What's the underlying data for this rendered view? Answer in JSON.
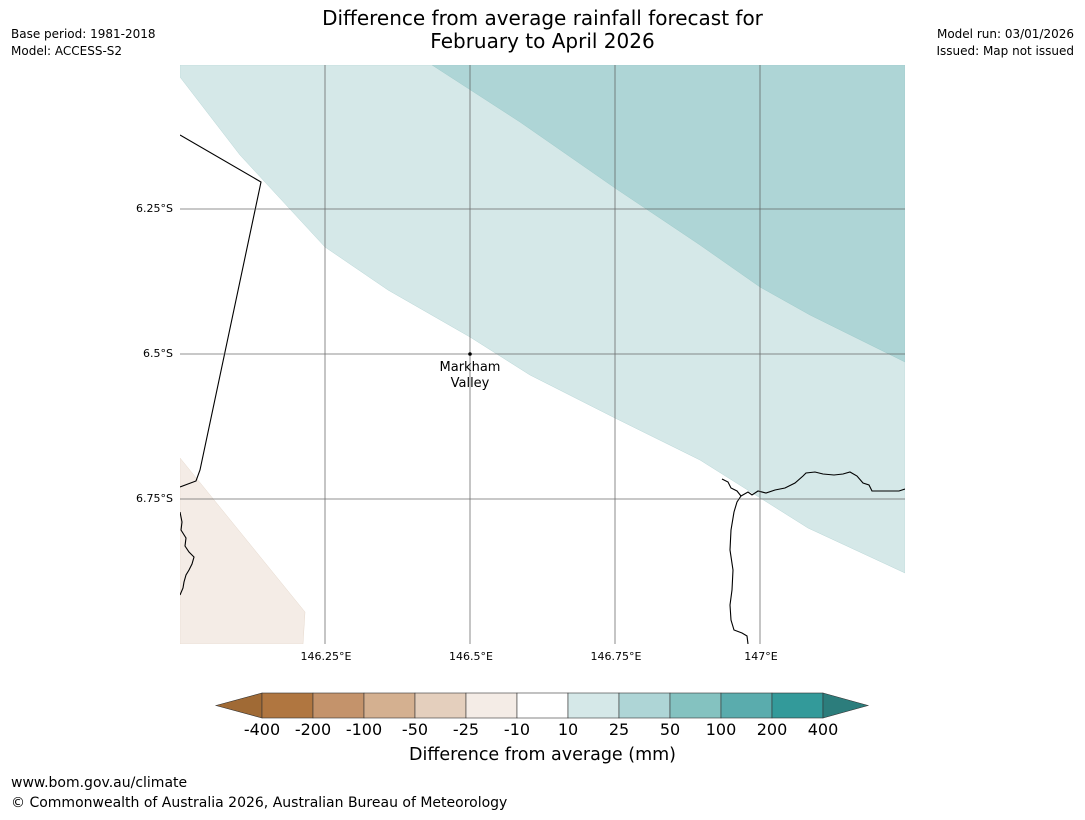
{
  "header": {
    "base_period": "Base period: 1981-2018",
    "model": "Model: ACCESS-S2",
    "model_run": "Model run: 03/01/2026",
    "issued": "Issued: Map not issued",
    "title_line1": "Difference from average rainfall forecast for",
    "title_line2": "February to April 2026"
  },
  "map": {
    "lat_labels": [
      "6.25°S",
      "6.5°S",
      "6.75°S"
    ],
    "lon_labels": [
      "146.25°E",
      "146.5°E",
      "146.75°E",
      "147°E"
    ],
    "place": {
      "name_line1": "Markham",
      "name_line2": "Valley",
      "lat": -6.5,
      "lon": 146.5
    }
  },
  "colorbar": {
    "ticks": [
      "-400",
      "-200",
      "-100",
      "-50",
      "-25",
      "-10",
      "10",
      "25",
      "50",
      "100",
      "200",
      "400"
    ],
    "colors": {
      "below_min": "#a06a35",
      "bins": [
        "#b07640",
        "#c4936b",
        "#d4b090",
        "#e4cfbd",
        "#f4ece6",
        "#ffffff",
        "#d5e8e8",
        "#aed5d6",
        "#84c2c0",
        "#5aacad",
        "#339a9a"
      ],
      "above_max": "#2c7d7c"
    },
    "label": "Difference from average (mm)"
  },
  "footer": {
    "url": "www.bom.gov.au/climate",
    "copyright": "© Commonwealth of Australia 2026, Australian Bureau of Meteorology"
  }
}
